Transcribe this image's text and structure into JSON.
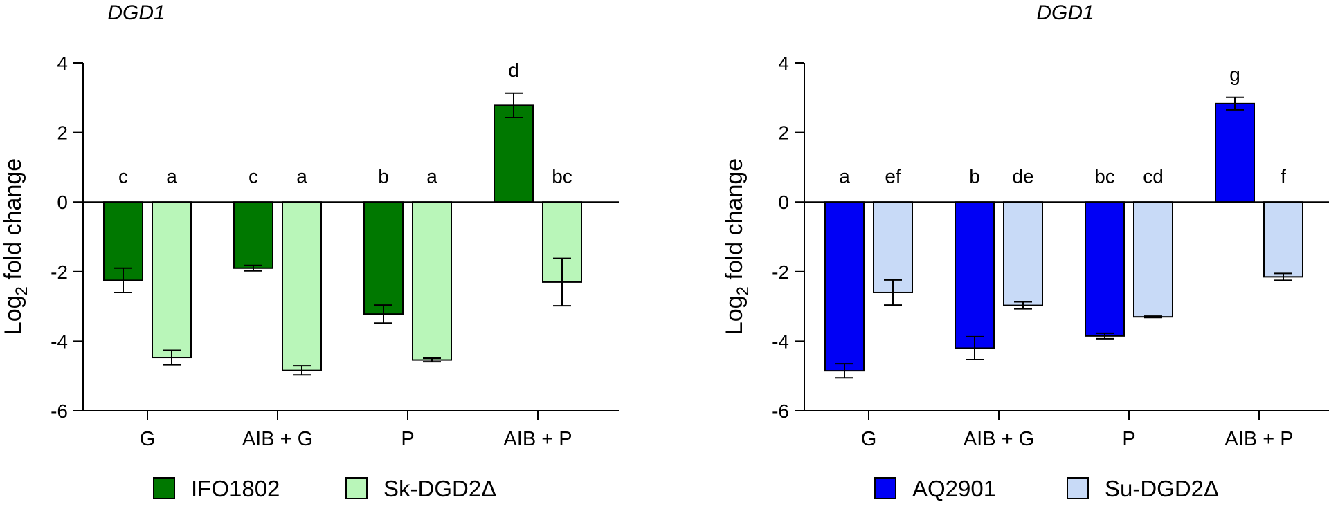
{
  "chart_data": [
    {
      "type": "bar",
      "title": "DGD1",
      "ylabel": "Log2 fold change",
      "ylabel_main": "Log",
      "ylabel_sub": "2",
      "ylabel_rest": " fold change",
      "ylim": [
        -6,
        4
      ],
      "yticks": [
        4,
        2,
        0,
        -2,
        -4,
        -6
      ],
      "ytick_labels": [
        "4",
        "2",
        "0",
        "-2",
        "-4",
        "-6"
      ],
      "categories": [
        "G",
        "AIB + G",
        "P",
        "AIB + P"
      ],
      "legend_position": "bottom",
      "series": [
        {
          "name": "IFO1802",
          "color": "#007800",
          "values": [
            -2.25,
            -1.9,
            -3.22,
            2.78
          ],
          "errors": [
            0.35,
            0.08,
            0.26,
            0.35
          ],
          "letters": [
            "c",
            "c",
            "b",
            "d"
          ]
        },
        {
          "name": "Sk-DGD2Δ",
          "color": "#b9f6b9",
          "values": [
            -4.47,
            -4.84,
            -4.54,
            -2.3
          ],
          "errors": [
            0.21,
            0.13,
            0.05,
            0.68
          ],
          "letters": [
            "a",
            "a",
            "a",
            "bc"
          ]
        }
      ]
    },
    {
      "type": "bar",
      "title": "DGD1",
      "ylabel": "Log2 fold change",
      "ylabel_main": "Log",
      "ylabel_sub": "2",
      "ylabel_rest": " fold change",
      "ylim": [
        -6,
        4
      ],
      "yticks": [
        4,
        2,
        0,
        -2,
        -4,
        -6
      ],
      "ytick_labels": [
        "4",
        "2",
        "0",
        "-2",
        "-4",
        "-6"
      ],
      "categories": [
        "G",
        "AIB + G",
        "P",
        "AIB + P"
      ],
      "legend_position": "bottom",
      "series": [
        {
          "name": "AQ2901",
          "color": "#0000f5",
          "values": [
            -4.85,
            -4.2,
            -3.85,
            2.83
          ],
          "errors": [
            0.2,
            0.33,
            0.08,
            0.18
          ],
          "letters": [
            "a",
            "b",
            "bc",
            "g"
          ]
        },
        {
          "name": "Su-DGD2Δ",
          "color": "#c8daf7",
          "values": [
            -2.6,
            -2.97,
            -3.3,
            -2.15
          ],
          "errors": [
            0.36,
            0.1,
            0.02,
            0.1
          ],
          "letters": [
            "ef",
            "de",
            "cd",
            "f"
          ]
        }
      ]
    }
  ]
}
